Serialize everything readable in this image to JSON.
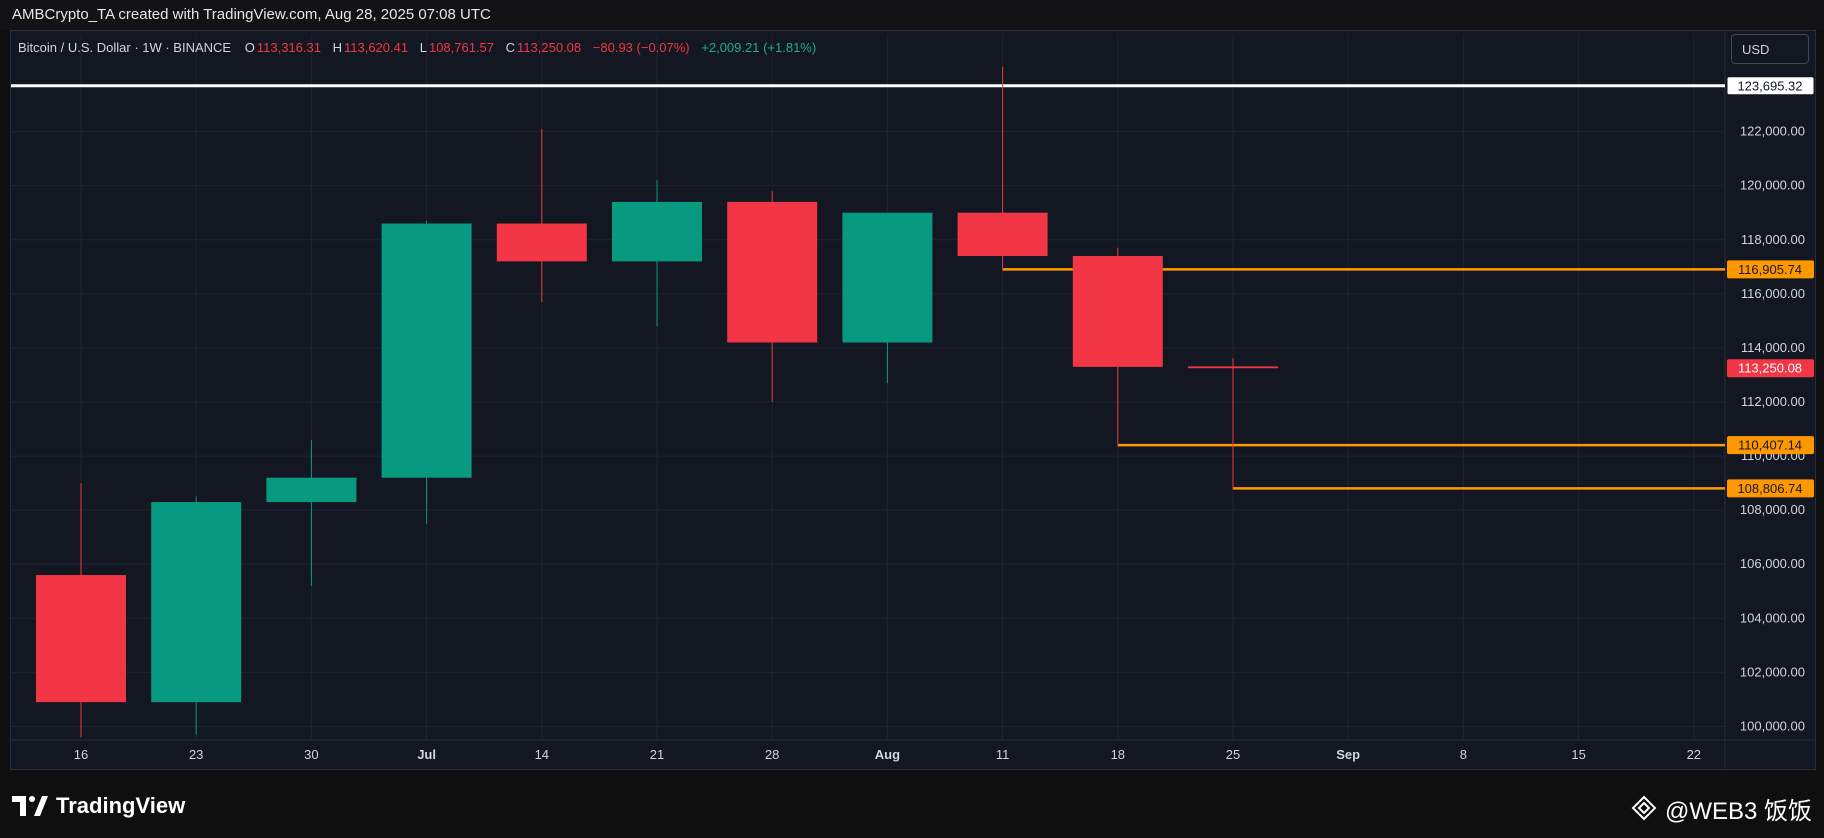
{
  "header": {
    "caption": "AMBCrypto_TA created with TradingView.com, Aug 28, 2025 07:08 UTC"
  },
  "legend": {
    "symbol": "Bitcoin / U.S. Dollar · 1W · BINANCE",
    "open_key": "O",
    "open": "113,316.31",
    "high_key": "H",
    "high": "113,620.41",
    "low_key": "L",
    "low": "108,761.57",
    "close_key": "C",
    "close": "113,250.08",
    "change": "−80.93 (−0.07%)",
    "volume_change": "+2,009.21 (+1.81%)"
  },
  "currency": "USD",
  "footer": {
    "brand": "TradingView",
    "watermark": "@WEB3 饭饭"
  },
  "colors": {
    "up": "#089981",
    "down": "#f23645",
    "level": "#ff9800",
    "ath": "#ffffff",
    "background": "#131722",
    "grid": "#1f2330"
  },
  "chart_data": {
    "type": "candlestick",
    "x_tick_labels": [
      "16",
      "23",
      "30",
      "Jul",
      "14",
      "21",
      "28",
      "Aug",
      "11",
      "18",
      "25",
      "Sep",
      "8",
      "15",
      "22"
    ],
    "y_tick_labels": [
      "100,000.00",
      "102,000.00",
      "104,000.00",
      "106,000.00",
      "108,000.00",
      "110,000.00",
      "112,000.00",
      "114,000.00",
      "116,000.00",
      "118,000.00",
      "120,000.00",
      "122,000.00"
    ],
    "y_ticks": [
      100000,
      102000,
      104000,
      106000,
      108000,
      110000,
      112000,
      114000,
      116000,
      118000,
      120000,
      122000
    ],
    "ylim": [
      99500,
      124500
    ],
    "candles": [
      {
        "week": "16",
        "open": 105600,
        "high": 109000,
        "low": 99600,
        "close": 100900
      },
      {
        "week": "23",
        "open": 100900,
        "high": 108500,
        "low": 99700,
        "close": 108300
      },
      {
        "week": "30",
        "open": 108300,
        "high": 110600,
        "low": 105200,
        "close": 109200
      },
      {
        "week": "Jul",
        "open": 109200,
        "high": 118700,
        "low": 107500,
        "close": 118600
      },
      {
        "week": "14",
        "open": 118600,
        "high": 122100,
        "low": 115700,
        "close": 117200
      },
      {
        "week": "21",
        "open": 117200,
        "high": 120200,
        "low": 114800,
        "close": 119400
      },
      {
        "week": "28",
        "open": 119400,
        "high": 119800,
        "low": 112000,
        "close": 114200
      },
      {
        "week": "Aug",
        "open": 114200,
        "high": 119000,
        "low": 112700,
        "close": 119000
      },
      {
        "week": "11",
        "open": 119000,
        "high": 124400,
        "low": 116900,
        "close": 117400
      },
      {
        "week": "18",
        "open": 117400,
        "high": 117700,
        "low": 110400,
        "close": 113300
      },
      {
        "week": "25",
        "open": 113316.31,
        "high": 113620.41,
        "low": 108761.57,
        "close": 113250.08
      }
    ],
    "levels": [
      {
        "label": "123,695.32",
        "value": 123695.32,
        "kind": "ath",
        "from_index": 0
      },
      {
        "label": "116,905.74",
        "value": 116905.74,
        "kind": "level",
        "from_index": 8
      },
      {
        "label": "110,407.14",
        "value": 110407.14,
        "kind": "level",
        "from_index": 9
      },
      {
        "label": "108,806.74",
        "value": 108806.74,
        "kind": "level",
        "from_index": 10
      }
    ],
    "last_price": {
      "label": "113,250.08",
      "value": 113250.08
    }
  }
}
